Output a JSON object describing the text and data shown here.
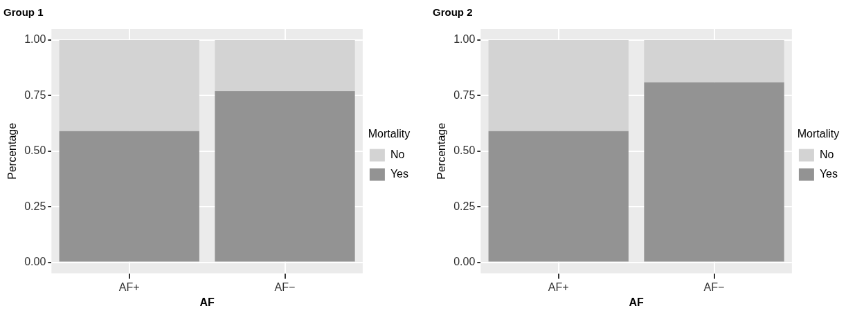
{
  "chart_data": [
    {
      "type": "bar",
      "title": "Group 1",
      "xlabel": "AF",
      "ylabel": "Percentage",
      "legend_title": "Mortality",
      "categories": [
        "AF+",
        "AF−"
      ],
      "stacked": true,
      "legend": "right",
      "grid": true,
      "series": [
        {
          "name": "Yes",
          "color": "#939393",
          "values": [
            0.59,
            0.77
          ]
        },
        {
          "name": "No",
          "color": "#d3d3d3",
          "values": [
            0.41,
            0.23
          ]
        }
      ],
      "ylim": [
        -0.05,
        1.05
      ],
      "yticks": [
        {
          "value": 0,
          "label": "0.00"
        },
        {
          "value": 0.25,
          "label": "0.25"
        },
        {
          "value": 0.5,
          "label": "0.50"
        },
        {
          "value": 0.75,
          "label": "0.75"
        },
        {
          "value": 1,
          "label": "1.00"
        }
      ]
    },
    {
      "type": "bar",
      "title": "Group 2",
      "xlabel": "AF",
      "ylabel": "Percentage",
      "legend_title": "Mortality",
      "categories": [
        "AF+",
        "AF−"
      ],
      "stacked": true,
      "legend": "right",
      "grid": true,
      "series": [
        {
          "name": "Yes",
          "color": "#939393",
          "values": [
            0.59,
            0.81
          ]
        },
        {
          "name": "No",
          "color": "#d3d3d3",
          "values": [
            0.41,
            0.19
          ]
        }
      ],
      "ylim": [
        -0.05,
        1.05
      ],
      "yticks": [
        {
          "value": 0,
          "label": "0.00"
        },
        {
          "value": 0.25,
          "label": "0.25"
        },
        {
          "value": 0.5,
          "label": "0.50"
        },
        {
          "value": 0.75,
          "label": "0.75"
        },
        {
          "value": 1,
          "label": "1.00"
        }
      ]
    }
  ]
}
